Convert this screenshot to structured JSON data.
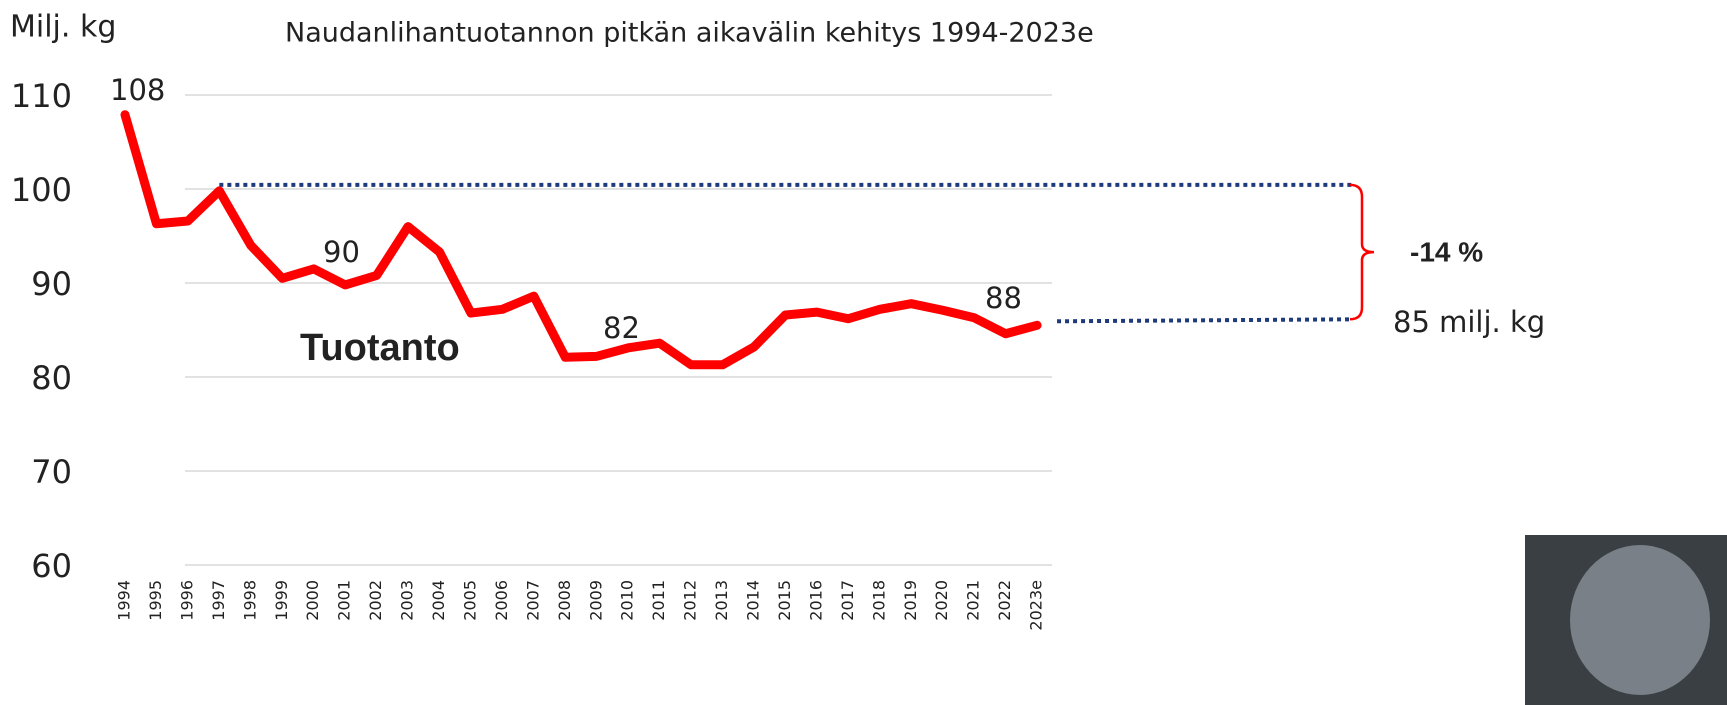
{
  "chart_data": {
    "type": "line",
    "title": "Naudanlihantuotannon pitkän aikavälin kehitys 1994-2023e",
    "y_label": "Milj. kg",
    "categories": [
      "1994",
      "1995",
      "1996",
      "1997",
      "1998",
      "1999",
      "2000",
      "2001",
      "2002",
      "2003",
      "2004",
      "2005",
      "2006",
      "2007",
      "2008",
      "2009",
      "2010",
      "2011",
      "2012",
      "2013",
      "2014",
      "2015",
      "2016",
      "2017",
      "2018",
      "2019",
      "2020",
      "2021",
      "2022",
      "2023e"
    ],
    "series": [
      {
        "name": "Tuotanto",
        "color": "#ff0000",
        "values": [
          107.9,
          96.3,
          96.6,
          99.8,
          94,
          90.5,
          91.5,
          89.8,
          90.8,
          96,
          93.3,
          86.8,
          87.2,
          88.6,
          82.1,
          82.2,
          83.1,
          83.6,
          81.3,
          81.3,
          83.2,
          86.6,
          86.9,
          86.2,
          87.2,
          87.8,
          87.1,
          86.3,
          84.6,
          85.5
        ]
      }
    ],
    "ylim": [
      60,
      110
    ],
    "yticks": [
      60,
      70,
      80,
      90,
      100,
      110
    ],
    "grid": true,
    "annotations": [
      "108",
      "90",
      "82",
      "88",
      "-14 %",
      "85 milj. kg"
    ]
  }
}
